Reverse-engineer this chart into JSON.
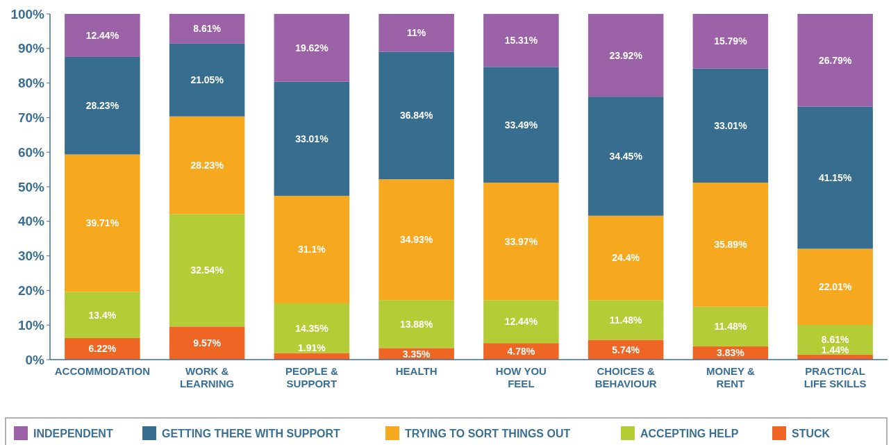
{
  "chart_data": {
    "type": "bar",
    "stacked": true,
    "legend": "bottom",
    "categories": [
      "ACCOMMODATION",
      "WORK &\nLEARNING",
      "PEOPLE &\nSUPPORT",
      "HEALTH",
      "HOW YOU\nFEEL",
      "CHOICES &\nBEHAVIOUR",
      "MONEY &\nRENT",
      "PRACTICAL\nLIFE SKILLS"
    ],
    "ylim": [
      0,
      100
    ],
    "yticks": [
      {
        "value": 0,
        "label": "0%"
      },
      {
        "value": 10,
        "label": "10%"
      },
      {
        "value": 20,
        "label": "20%"
      },
      {
        "value": 30,
        "label": "30%"
      },
      {
        "value": 40,
        "label": "40%"
      },
      {
        "value": 50,
        "label": "50%"
      },
      {
        "value": 60,
        "label": "60%"
      },
      {
        "value": 70,
        "label": "70%"
      },
      {
        "value": 80,
        "label": "80%"
      },
      {
        "value": 90,
        "label": "90%"
      },
      {
        "value": 100,
        "label": "100%"
      }
    ],
    "series": [
      {
        "name": "STUCK",
        "color": "#ef6523",
        "values": [
          6.22,
          9.57,
          1.91,
          3.35,
          4.78,
          5.74,
          3.83,
          1.44
        ],
        "value_labels": [
          "6.22%",
          "9.57%",
          "1.91%",
          "3.35%",
          "4.78%",
          "5.74%",
          "3.83%",
          "1.44%"
        ]
      },
      {
        "name": "ACCEPTING HELP",
        "color": "#b4cc35",
        "values": [
          13.4,
          32.54,
          14.35,
          13.88,
          12.44,
          11.48,
          11.48,
          8.61
        ],
        "value_labels": [
          "13.4%",
          "32.54%",
          "14.35%",
          "13.88%",
          "12.44%",
          "11.48%",
          "11.48%",
          "8.61%"
        ]
      },
      {
        "name": "TRYING TO SORT THINGS OUT",
        "color": "#f6a81f",
        "values": [
          39.71,
          28.23,
          31.1,
          34.93,
          33.97,
          24.4,
          35.89,
          22.01
        ],
        "value_labels": [
          "39.71%",
          "28.23%",
          "31.1%",
          "34.93%",
          "33.97%",
          "24.4%",
          "35.89%",
          "22.01%"
        ]
      },
      {
        "name": "GETTING THERE WITH SUPPORT",
        "color": "#376e8f",
        "values": [
          28.23,
          21.05,
          33.01,
          36.84,
          33.49,
          34.45,
          33.01,
          41.15
        ],
        "value_labels": [
          "28.23%",
          "21.05%",
          "33.01%",
          "36.84%",
          "33.49%",
          "34.45%",
          "33.01%",
          "41.15%"
        ]
      },
      {
        "name": "INDEPENDENT",
        "color": "#9b62a8",
        "values": [
          12.44,
          8.61,
          19.62,
          11,
          15.31,
          23.92,
          15.79,
          26.79
        ],
        "value_labels": [
          "12.44%",
          "8.61%",
          "19.62%",
          "11%",
          "15.31%",
          "23.92%",
          "15.79%",
          "26.79%"
        ]
      }
    ]
  }
}
